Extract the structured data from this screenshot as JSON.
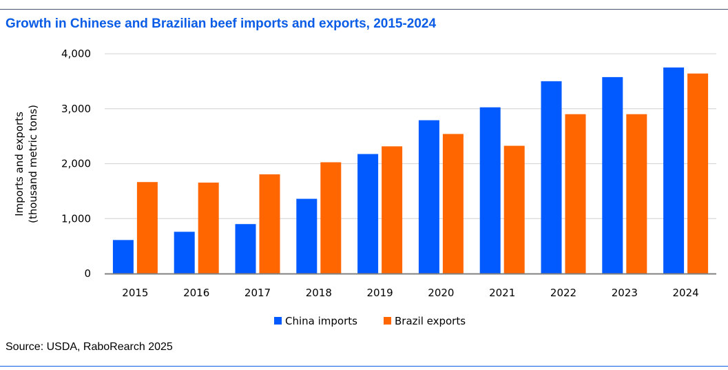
{
  "title": "Growth in Chinese and Brazilian beef imports and exports, 2015-2024",
  "source": "Source: USDA, RaboRearch 2025",
  "colors": {
    "rule": "#1a4fa8",
    "china": "#005AFF",
    "brazil": "#FF6600",
    "grid": "#d9d9d9",
    "axis": "#808080"
  },
  "chart_data": {
    "type": "bar",
    "title": "Growth in Chinese and Brazilian beef imports and exports, 2015-2024",
    "xlabel": "",
    "ylabel": [
      "Imports and exports",
      "(thousand metric tons)"
    ],
    "ylim": [
      0,
      4000
    ],
    "yticks": [
      0,
      1000,
      2000,
      3000,
      4000
    ],
    "ytick_labels": [
      "0",
      "1,000",
      "2,000",
      "3,000",
      "4,000"
    ],
    "grid": true,
    "legend": "bottom",
    "categories": [
      "2015",
      "2016",
      "2017",
      "2018",
      "2019",
      "2020",
      "2021",
      "2022",
      "2023",
      "2024"
    ],
    "series": [
      {
        "name": "China imports",
        "color": "#005AFF",
        "values": [
          610,
          760,
          900,
          1360,
          2175,
          2790,
          3025,
          3500,
          3575,
          3750
        ]
      },
      {
        "name": "Brazil exports",
        "color": "#FF6600",
        "values": [
          1665,
          1655,
          1805,
          2025,
          2315,
          2540,
          2325,
          2900,
          2900,
          3640
        ]
      }
    ]
  }
}
